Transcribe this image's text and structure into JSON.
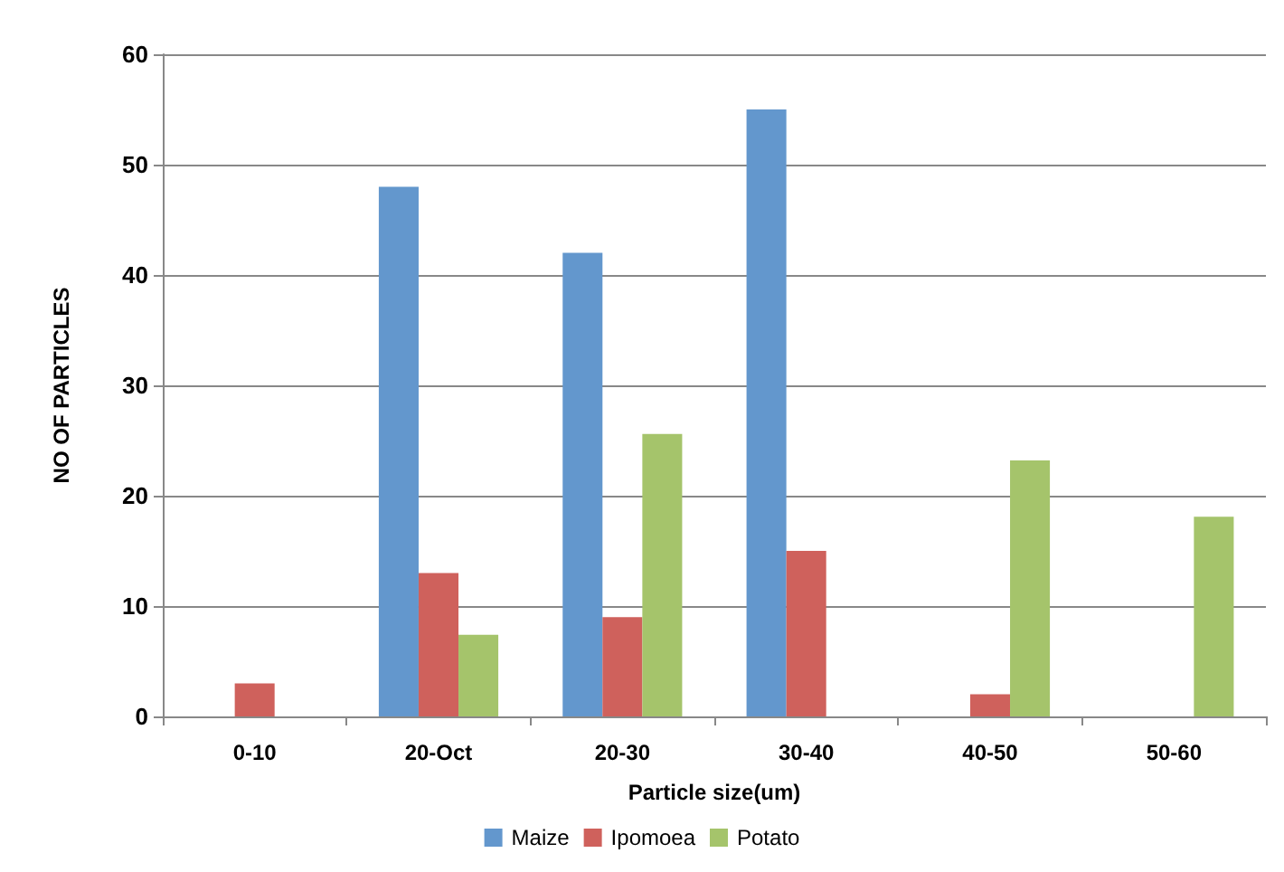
{
  "chart_data": {
    "type": "bar",
    "xlabel": "Particle size(um)",
    "ylabel": "NO OF PARTICLES",
    "categories": [
      "0-10",
      "20-Oct",
      "20-30",
      "30-40",
      "40-50",
      "50-60"
    ],
    "series": [
      {
        "name": "Maize",
        "color": "#6397cd",
        "values": [
          0,
          48,
          42,
          55,
          0,
          0
        ]
      },
      {
        "name": "Ipomoea",
        "color": "#cf615c",
        "values": [
          3,
          13,
          9,
          15,
          2,
          0
        ]
      },
      {
        "name": "Potato",
        "color": "#a5c46b",
        "values": [
          0,
          7.4,
          25.6,
          0,
          23.2,
          18.1
        ]
      }
    ],
    "ylim": [
      0,
      60
    ],
    "yticks": [
      0,
      10,
      20,
      30,
      40,
      50,
      60
    ],
    "grid": "y",
    "legend": "bottom"
  }
}
